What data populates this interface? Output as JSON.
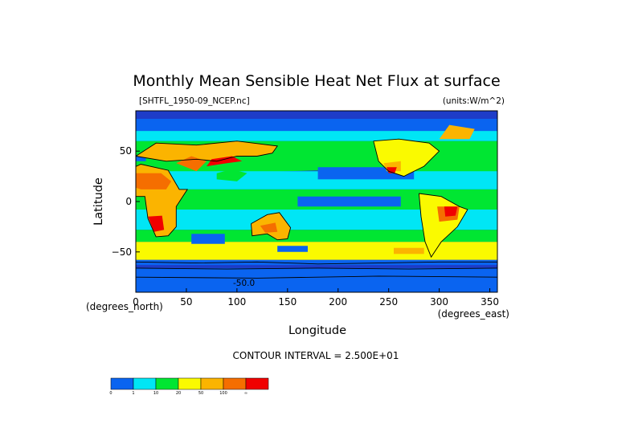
{
  "chart_data": {
    "type": "heatmap",
    "title": "Monthly Mean Sensible Heat Net Flux at surface",
    "dataset_label": "[SHTFL_1950-09_NCEP.nc]",
    "units_label": "(units:W/m^2)",
    "xlabel": "Longitude",
    "ylabel": "Latitude",
    "x_unit_label": "(degrees_east)",
    "y_unit_label": "(degrees_north)",
    "xlim": [
      0,
      357.5
    ],
    "ylim": [
      -90,
      90
    ],
    "x_ticks": [
      {
        "value": 0,
        "label": "0"
      },
      {
        "value": 50,
        "label": "50"
      },
      {
        "value": 100,
        "label": "100"
      },
      {
        "value": 150,
        "label": "150"
      },
      {
        "value": 200,
        "label": "200"
      },
      {
        "value": 250,
        "label": "250"
      },
      {
        "value": 300,
        "label": "300"
      },
      {
        "value": 350,
        "label": "350"
      }
    ],
    "y_ticks": [
      {
        "value": 50,
        "label": "50"
      },
      {
        "value": 0,
        "label": "0"
      },
      {
        "value": -50,
        "label": "−50"
      }
    ],
    "contour_interval_text": "CONTOUR INTERVAL = 2.500E+01",
    "contour_label": "-50.0",
    "colorbar": {
      "boundaries": [
        "0",
        "1",
        "10",
        "20",
        "50",
        "100",
        "∞"
      ],
      "colors": [
        "#0a64f0",
        "#00e6f5",
        "#00e632",
        "#fafa00",
        "#fbb400",
        "#f56e00",
        "#f00000"
      ]
    },
    "background_color": "#1e3cc8",
    "grid": false
  }
}
